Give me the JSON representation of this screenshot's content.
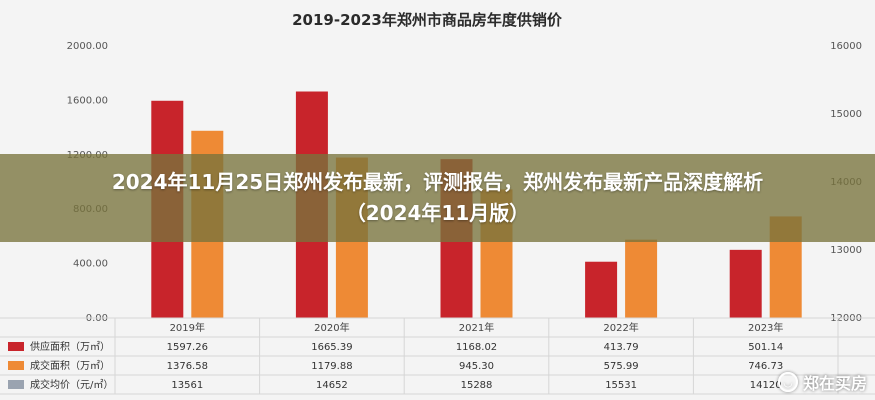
{
  "overlay": {
    "line1": "2024年11月25日郑州发布最新，评测报告，郑州发布最新产品深度解析",
    "line2": "（2024年11月版）"
  },
  "watermark": {
    "text": "郑在买房",
    "icon": "chat-bubble-icon"
  },
  "colors": {
    "supply": "#c8242b",
    "deal": "#ee8a35",
    "price": "#9aa3b0"
  },
  "chart_data": {
    "type": "bar",
    "title": "2019-2023年郑州市商品房年度供销价",
    "categories": [
      "2019年",
      "2020年",
      "2021年",
      "2022年",
      "2023年"
    ],
    "y_left": {
      "ticks": [
        "0.00",
        "400.00",
        "800.00",
        "1200.00",
        "1600.00",
        "2000.00"
      ],
      "range": [
        0,
        2000
      ]
    },
    "y_right": {
      "ticks": [
        "12000",
        "13000",
        "14000",
        "15000",
        "16000"
      ],
      "range": [
        12000,
        16000
      ]
    },
    "series": [
      {
        "name": "供应面积（万㎡）",
        "color": "#c8242b",
        "values": [
          1597.26,
          1665.39,
          1168.02,
          413.79,
          501.14
        ],
        "display": [
          "1597.26",
          "1665.39",
          "1168.02",
          "413.79",
          "501.14"
        ]
      },
      {
        "name": "成交面积（万㎡）",
        "color": "#ee8a35",
        "values": [
          1376.58,
          1179.88,
          945.3,
          575.99,
          746.73
        ],
        "display": [
          "1376.58",
          "1179.88",
          "945.30",
          "575.99",
          "746.73"
        ]
      },
      {
        "name": "成交均价（元/㎡）",
        "color": "#9aa3b0",
        "values": [
          13561,
          14652,
          15288,
          15531,
          14120
        ],
        "display": [
          "13561",
          "14652",
          "15288",
          "15531",
          "14120"
        ]
      }
    ],
    "grid": false,
    "legend": "table-bottom"
  }
}
